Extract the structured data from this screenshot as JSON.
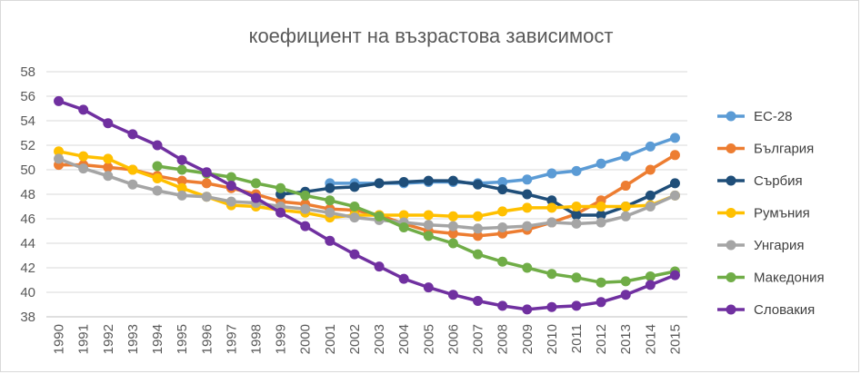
{
  "chart_data": {
    "type": "line",
    "title": "коефициент на възрастова зависимост",
    "xlabel": "",
    "ylabel": "",
    "x": [
      "1990",
      "1991",
      "1992",
      "1993",
      "1994",
      "1995",
      "1996",
      "1997",
      "1998",
      "1999",
      "2000",
      "2001",
      "2002",
      "2003",
      "2004",
      "2005",
      "2006",
      "2007",
      "2008",
      "2009",
      "2010",
      "2011",
      "2012",
      "2013",
      "2014",
      "2015"
    ],
    "ylim": [
      38,
      58
    ],
    "yticks": [
      38,
      40,
      42,
      44,
      46,
      48,
      50,
      52,
      54,
      56,
      58
    ],
    "grid": true,
    "legend_position": "right",
    "series": [
      {
        "name": "ЕС-28",
        "color": "#5b9bd5",
        "values": [
          null,
          null,
          null,
          null,
          null,
          null,
          null,
          null,
          null,
          null,
          null,
          48.9,
          48.9,
          48.9,
          48.9,
          49.0,
          49.0,
          48.9,
          49.0,
          49.2,
          49.7,
          49.9,
          50.5,
          51.1,
          51.9,
          52.6
        ]
      },
      {
        "name": "България",
        "color": "#ed7d31",
        "values": [
          50.4,
          50.4,
          50.2,
          50.0,
          49.5,
          49.1,
          48.9,
          48.5,
          48.0,
          47.4,
          47.2,
          46.8,
          46.7,
          46.3,
          45.6,
          45.0,
          44.8,
          44.6,
          44.8,
          45.1,
          45.7,
          46.4,
          47.5,
          48.7,
          50.0,
          51.2
        ]
      },
      {
        "name": "Сърбия",
        "color": "#1f4e79",
        "values": [
          null,
          null,
          null,
          null,
          null,
          null,
          null,
          null,
          null,
          48.0,
          48.2,
          48.5,
          48.6,
          48.9,
          49.0,
          49.1,
          49.1,
          48.8,
          48.4,
          48.0,
          47.5,
          46.3,
          46.3,
          47.0,
          47.9,
          48.9
        ]
      },
      {
        "name": "Румъния",
        "color": "#ffc000",
        "values": [
          51.5,
          51.1,
          50.9,
          50.0,
          49.3,
          48.5,
          47.8,
          47.1,
          47.0,
          46.7,
          46.5,
          46.1,
          46.3,
          46.3,
          46.3,
          46.3,
          46.2,
          46.2,
          46.6,
          46.9,
          46.9,
          47.0,
          47.0,
          47.0,
          47.1,
          47.9
        ]
      },
      {
        "name": "Унгария",
        "color": "#a5a5a5",
        "values": [
          50.9,
          50.1,
          49.5,
          48.8,
          48.3,
          47.9,
          47.8,
          47.4,
          47.3,
          47.0,
          46.8,
          46.5,
          46.1,
          45.9,
          45.7,
          45.5,
          45.4,
          45.2,
          45.3,
          45.4,
          45.7,
          45.6,
          45.7,
          46.2,
          47.0,
          47.9
        ]
      },
      {
        "name": "Македония",
        "color": "#70ad47",
        "values": [
          null,
          null,
          null,
          null,
          50.3,
          50.0,
          49.7,
          49.4,
          48.9,
          48.5,
          47.9,
          47.5,
          47.0,
          46.2,
          45.3,
          44.6,
          44.0,
          43.1,
          42.5,
          42.0,
          41.5,
          41.2,
          40.8,
          40.9,
          41.3,
          41.7
        ]
      },
      {
        "name": "Словакия",
        "color": "#7030a0",
        "values": [
          55.6,
          54.9,
          53.8,
          52.9,
          52.0,
          50.8,
          49.8,
          48.7,
          47.7,
          46.5,
          45.4,
          44.2,
          43.1,
          42.1,
          41.1,
          40.4,
          39.8,
          39.3,
          38.9,
          38.6,
          38.8,
          38.9,
          39.2,
          39.8,
          40.6,
          41.4
        ]
      }
    ]
  }
}
